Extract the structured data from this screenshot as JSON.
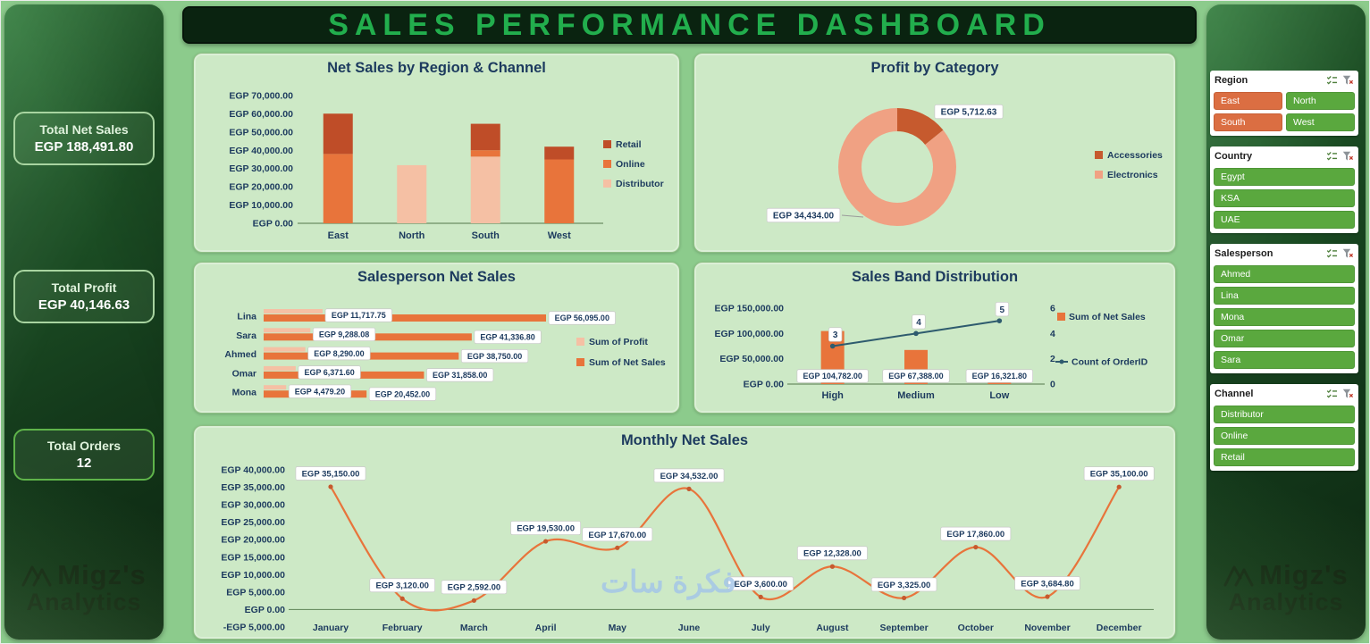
{
  "header": {
    "title": "SALES PERFORMANCE DASHBOARD"
  },
  "kpis": [
    {
      "id": "total-net-sales",
      "label": "Total Net Sales",
      "value": "EGP 188,491.80"
    },
    {
      "id": "total-profit",
      "label": "Total Profit",
      "value": "EGP 40,146.63"
    },
    {
      "id": "total-orders",
      "label": "Total Orders",
      "value": "12"
    }
  ],
  "brand": {
    "line1": "Migz's",
    "line2": "Analytics"
  },
  "watermark": "فكرة سات",
  "icons": {
    "multi_select": "checklist-icon",
    "clear_filter": "funnel-clear-icon",
    "brand_mark": "mountain-peaks-icon"
  },
  "colors": {
    "accent_orange": "#E8743B",
    "accent_rust": "#BF4D28",
    "accent_peach": "#F5C0A4",
    "accent_salmon": "#F0A183",
    "line_teal": "#2E5B6E",
    "slicer_green": "#5AA83E",
    "slicer_orange": "#DB6E42",
    "title_navy": "#1C3A5E",
    "header_green": "#22AE4D",
    "panel_bg": "#CDE9C6",
    "page_bg": "#8CCB8C"
  },
  "slicers": [
    {
      "title": "Region",
      "columns": 2,
      "items": [
        {
          "label": "East",
          "accent": true
        },
        {
          "label": "North"
        },
        {
          "label": "South",
          "accent": true
        },
        {
          "label": "West"
        }
      ]
    },
    {
      "title": "Country",
      "items": [
        {
          "label": "Egypt"
        },
        {
          "label": "KSA"
        },
        {
          "label": "UAE"
        }
      ]
    },
    {
      "title": "Salesperson",
      "items": [
        {
          "label": "Ahmed"
        },
        {
          "label": "Lina"
        },
        {
          "label": "Mona"
        },
        {
          "label": "Omar"
        },
        {
          "label": "Sara"
        }
      ]
    },
    {
      "title": "Channel",
      "items": [
        {
          "label": "Distributor"
        },
        {
          "label": "Online"
        },
        {
          "label": "Retail"
        }
      ]
    }
  ],
  "chart_data": [
    {
      "id": "region_channel",
      "type": "bar",
      "stacked": true,
      "title": "Net Sales by Region & Channel",
      "categories": [
        "East",
        "North",
        "South",
        "West"
      ],
      "series": [
        {
          "name": "Distributor",
          "color": "#F5C0A4",
          "values": [
            0,
            31858,
            36538.8,
            0
          ]
        },
        {
          "name": "Online",
          "color": "#E8743B",
          "values": [
            38000,
            0,
            3500,
            35000
          ]
        },
        {
          "name": "Retail",
          "color": "#BF4D28",
          "values": [
            22095,
            0,
            14500,
            7000
          ]
        }
      ],
      "ylim": [
        0,
        70000
      ],
      "ytick_step": 10000,
      "legend_position": "right"
    },
    {
      "id": "profit_category",
      "type": "pie",
      "donut": true,
      "title": "Profit by Category",
      "slices": [
        {
          "name": "Accessories",
          "value": 5712.63,
          "color": "#C65A2E",
          "label": "EGP 5,712.63"
        },
        {
          "name": "Electronics",
          "value": 34434.0,
          "color": "#F0A183",
          "label": "EGP 34,434.00"
        }
      ],
      "legend_position": "right"
    },
    {
      "id": "salesperson",
      "type": "bar",
      "orientation": "horizontal",
      "title": "Salesperson Net Sales",
      "categories": [
        "Lina",
        "Sara",
        "Ahmed",
        "Omar",
        "Mona"
      ],
      "series": [
        {
          "name": "Sum of Profit",
          "color": "#F5C0A4",
          "values": [
            11717.75,
            9288.08,
            8290.0,
            6371.6,
            4479.2
          ],
          "labels": [
            "EGP 11,717.75",
            "EGP 9,288.08",
            "EGP 8,290.00",
            "EGP 6,371.60",
            "EGP 4,479.20"
          ]
        },
        {
          "name": "Sum of Net Sales",
          "color": "#E8743B",
          "values": [
            56095.0,
            41336.8,
            38750.0,
            31858.0,
            20452.0
          ],
          "labels": [
            "EGP 56,095.00",
            "EGP 41,336.80",
            "EGP 38,750.00",
            "EGP 31,858.00",
            "EGP 20,452.00"
          ]
        }
      ],
      "legend_position": "right"
    },
    {
      "id": "sales_band",
      "type": "combo",
      "title": "Sales Band Distribution",
      "categories": [
        "High",
        "Medium",
        "Low"
      ],
      "bar_series": {
        "name": "Sum of Net Sales",
        "color": "#E8743B",
        "values": [
          104782.0,
          67388.0,
          16321.8
        ],
        "labels": [
          "EGP 104,782.00",
          "EGP 67,388.00",
          "EGP 16,321.80"
        ]
      },
      "line_series": {
        "name": "Count of OrderID",
        "color": "#2E5B6E",
        "values": [
          3,
          4,
          5
        ]
      },
      "ylim": [
        0,
        150000
      ],
      "ytick_step": 50000,
      "y2lim": [
        0,
        6
      ],
      "y2tick_step": 2,
      "legend_position": "right"
    },
    {
      "id": "monthly",
      "type": "line",
      "smooth": true,
      "title": "Monthly Net Sales",
      "color": "#E8743B",
      "categories": [
        "January",
        "February",
        "March",
        "April",
        "May",
        "June",
        "July",
        "August",
        "September",
        "October",
        "November",
        "December"
      ],
      "values": [
        35150.0,
        3120.0,
        2592.0,
        19530.0,
        17670.0,
        34532.0,
        3600.0,
        12328.0,
        3325.0,
        17860.0,
        3684.8,
        35100.0
      ],
      "labels": [
        "EGP 35,150.00",
        "EGP 3,120.00",
        "EGP 2,592.00",
        "EGP 19,530.00",
        "EGP 17,670.00",
        "EGP 34,532.00",
        "EGP 3,600.00",
        "EGP 12,328.00",
        "EGP 3,325.00",
        "EGP 17,860.00",
        "EGP 3,684.80",
        "EGP 35,100.00"
      ],
      "ylim": [
        -5000,
        40000
      ],
      "ytick_step": 5000
    }
  ]
}
